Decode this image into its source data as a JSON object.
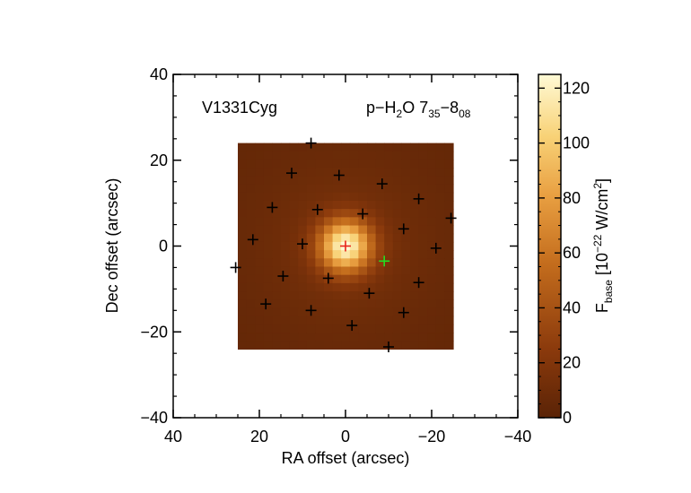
{
  "chart_data": {
    "type": "heatmap",
    "object_name": "V1331Cyg",
    "line_label": {
      "base": "p−H",
      "sub1": "2",
      "mid": "O 7",
      "sub2": "35",
      "dash": "−8",
      "sub3": "08"
    },
    "xlabel": "RA offset (arcsec)",
    "ylabel": "Dec offset (arcsec)",
    "xlim": [
      40,
      -40
    ],
    "ylim": [
      -40,
      40
    ],
    "x_ticks": [
      40,
      20,
      0,
      -20,
      -40
    ],
    "x_tick_labels": [
      "40",
      "20",
      "0",
      "−20",
      "−40"
    ],
    "y_ticks": [
      40,
      20,
      0,
      -20,
      -40
    ],
    "y_tick_labels": [
      "40",
      "20",
      "0",
      "−20",
      "−40"
    ],
    "image_extent": {
      "x": [
        25,
        -25
      ],
      "y": [
        -24,
        24
      ]
    },
    "peak_position": [
      0,
      0
    ],
    "peak_value": 125,
    "colorbar": {
      "label_base": "F",
      "label_sub": "base",
      "label_rest": " [10",
      "label_sup1": "−22",
      "label_unit": " W/cm",
      "label_sup2": "2",
      "label_end": "]",
      "range": [
        0,
        125
      ],
      "ticks": [
        0,
        20,
        40,
        60,
        80,
        100,
        120
      ],
      "tick_labels": [
        "0",
        "20",
        "40",
        "60",
        "80",
        "100",
        "120"
      ]
    },
    "spaxel_positions": [
      [
        8,
        24
      ],
      [
        12.5,
        17
      ],
      [
        1.5,
        16.5
      ],
      [
        -8.5,
        14.5
      ],
      [
        -17,
        11
      ],
      [
        17,
        9
      ],
      [
        6.5,
        8.5
      ],
      [
        -4,
        7.5
      ],
      [
        -24.5,
        6.5
      ],
      [
        -13.5,
        4
      ],
      [
        21.5,
        1.5
      ],
      [
        10,
        0.5
      ],
      [
        -21,
        -0.5
      ],
      [
        25.5,
        -5
      ],
      [
        14.5,
        -7
      ],
      [
        4,
        -7.5
      ],
      [
        -5.5,
        -11
      ],
      [
        -17,
        -8.5
      ],
      [
        18.5,
        -13.5
      ],
      [
        8,
        -15
      ],
      [
        -13.5,
        -15.5
      ],
      [
        -1.5,
        -18.5
      ],
      [
        -10,
        -23.5
      ]
    ],
    "central_marker": {
      "pos": [
        0,
        0
      ],
      "color": "#e8231b"
    },
    "offset_marker": {
      "pos": [
        -9,
        -3.5
      ],
      "color": "#22dd22"
    }
  }
}
